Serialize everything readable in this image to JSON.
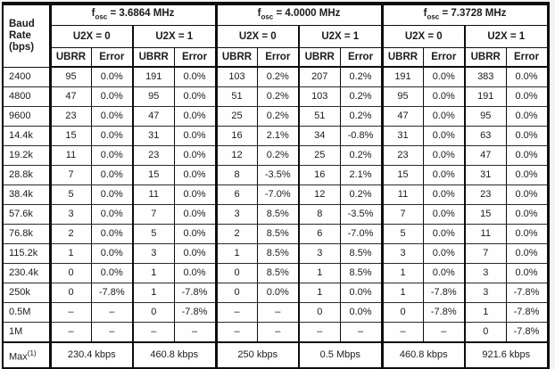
{
  "table": {
    "corner": {
      "lines": [
        "Baud",
        "Rate",
        "(bps)"
      ]
    },
    "header": {
      "fosc_sections": [
        {
          "f": "f",
          "sub": "osc",
          "rest": " = 3.6864 MHz"
        },
        {
          "f": "f",
          "sub": "osc",
          "rest": " = 4.0000 MHz"
        },
        {
          "f": "f",
          "sub": "osc",
          "rest": " = 7.3728 MHz"
        }
      ],
      "u2x_labels": [
        "U2X = 0",
        "U2X = 1"
      ],
      "col_labels": [
        "UBRR",
        "Error"
      ]
    },
    "rows": [
      {
        "baud": "2400",
        "cells": [
          "95",
          "0.0%",
          "191",
          "0.0%",
          "103",
          "0.2%",
          "207",
          "0.2%",
          "191",
          "0.0%",
          "383",
          "0.0%"
        ]
      },
      {
        "baud": "4800",
        "cells": [
          "47",
          "0.0%",
          "95",
          "0.0%",
          "51",
          "0.2%",
          "103",
          "0.2%",
          "95",
          "0.0%",
          "191",
          "0.0%"
        ]
      },
      {
        "baud": "9600",
        "cells": [
          "23",
          "0.0%",
          "47",
          "0.0%",
          "25",
          "0.2%",
          "51",
          "0.2%",
          "47",
          "0.0%",
          "95",
          "0.0%"
        ]
      },
      {
        "baud": "14.4k",
        "cells": [
          "15",
          "0.0%",
          "31",
          "0.0%",
          "16",
          "2.1%",
          "34",
          "-0.8%",
          "31",
          "0.0%",
          "63",
          "0.0%"
        ]
      },
      {
        "baud": "19.2k",
        "cells": [
          "11",
          "0.0%",
          "23",
          "0.0%",
          "12",
          "0.2%",
          "25",
          "0.2%",
          "23",
          "0.0%",
          "47",
          "0.0%"
        ]
      },
      {
        "baud": "28.8k",
        "cells": [
          "7",
          "0.0%",
          "15",
          "0.0%",
          "8",
          "-3.5%",
          "16",
          "2.1%",
          "15",
          "0.0%",
          "31",
          "0.0%"
        ]
      },
      {
        "baud": "38.4k",
        "cells": [
          "5",
          "0.0%",
          "11",
          "0.0%",
          "6",
          "-7.0%",
          "12",
          "0.2%",
          "11",
          "0.0%",
          "23",
          "0.0%"
        ]
      },
      {
        "baud": "57.6k",
        "cells": [
          "3",
          "0.0%",
          "7",
          "0.0%",
          "3",
          "8.5%",
          "8",
          "-3.5%",
          "7",
          "0.0%",
          "15",
          "0.0%"
        ]
      },
      {
        "baud": "76.8k",
        "cells": [
          "2",
          "0.0%",
          "5",
          "0.0%",
          "2",
          "8.5%",
          "6",
          "-7.0%",
          "5",
          "0.0%",
          "11",
          "0.0%"
        ]
      },
      {
        "baud": "115.2k",
        "cells": [
          "1",
          "0.0%",
          "3",
          "0.0%",
          "1",
          "8.5%",
          "3",
          "8.5%",
          "3",
          "0.0%",
          "7",
          "0.0%"
        ]
      },
      {
        "baud": "230.4k",
        "cells": [
          "0",
          "0.0%",
          "1",
          "0.0%",
          "0",
          "8.5%",
          "1",
          "8.5%",
          "1",
          "0.0%",
          "3",
          "0.0%"
        ]
      },
      {
        "baud": "250k",
        "cells": [
          "0",
          "-7.8%",
          "1",
          "-7.8%",
          "0",
          "0.0%",
          "1",
          "0.0%",
          "1",
          "-7.8%",
          "3",
          "-7.8%"
        ]
      },
      {
        "baud": "0.5M",
        "cells": [
          "–",
          "–",
          "0",
          "-7.8%",
          "–",
          "–",
          "0",
          "0.0%",
          "0",
          "-7.8%",
          "1",
          "-7.8%"
        ]
      },
      {
        "baud": "1M",
        "cells": [
          "–",
          "–",
          "–",
          "–",
          "–",
          "–",
          "–",
          "–",
          "–",
          "–",
          "0",
          "-7.8%"
        ]
      }
    ],
    "footer": {
      "label": "Max",
      "sup": "(1)",
      "values": [
        "230.4 kbps",
        "460.8 kbps",
        "250 kbps",
        "0.5 Mbps",
        "460.8 kbps",
        "921.6 kbps"
      ]
    }
  }
}
